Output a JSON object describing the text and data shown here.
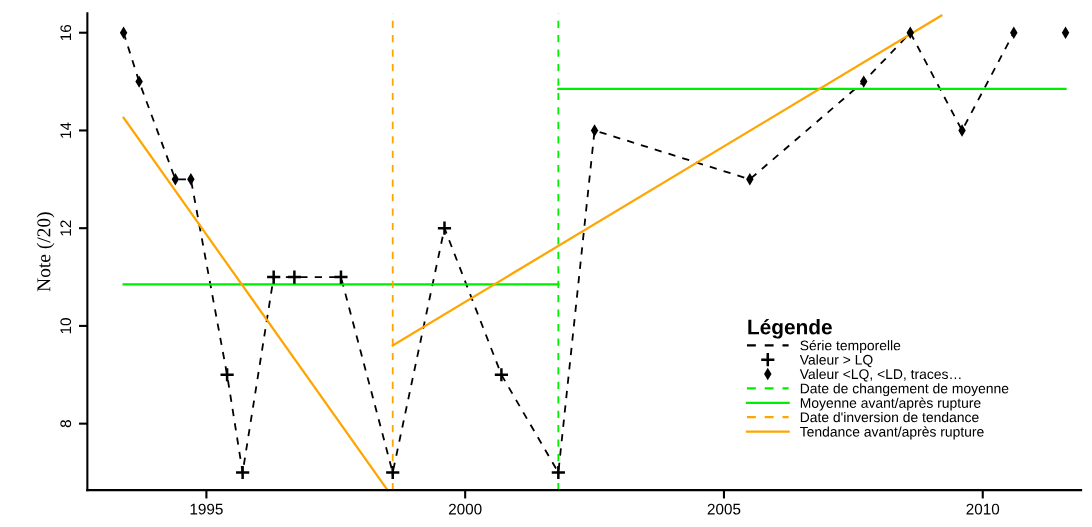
{
  "chart_data": {
    "type": "line",
    "ylabel": "Note (/20)",
    "legend_title": "Légende",
    "legend": "bottom right",
    "grid": false,
    "xlim": [
      1992.7,
      2011.9
    ],
    "xticks": [
      1995,
      2000,
      2005,
      2010
    ],
    "ylim": [
      6.64,
      16.4
    ],
    "yticks": [
      8,
      10,
      12,
      14,
      16
    ],
    "series": [
      {
        "name": "Série temporelle",
        "line_style": "dashed",
        "marker": "none",
        "color": "#000000",
        "x": [
          1993.4,
          1993.7,
          1994.4,
          1994.7,
          1995.4,
          1995.7,
          1996.3,
          1996.7,
          1997.6,
          1998.6,
          1999.6,
          2000.7,
          2001.8,
          2002.5,
          2005.5,
          2007.7,
          2008.6,
          2009.6,
          2010.6
        ],
        "values": [
          16,
          15,
          13,
          13,
          9,
          7,
          11,
          11,
          11,
          7,
          12,
          9,
          7,
          14,
          13,
          15,
          16,
          14,
          16
        ]
      },
      {
        "name": "Valeur > LQ",
        "type": "scatter",
        "marker": "cross",
        "color": "#000000",
        "x": [
          1995.4,
          1995.7,
          1996.3,
          1996.7,
          1997.6,
          1998.6,
          1999.6,
          2000.7,
          2001.8
        ],
        "values": [
          9,
          7,
          11,
          11,
          11,
          7,
          12,
          9,
          7
        ]
      },
      {
        "name": "Valeur <LQ, <LD, traces…",
        "type": "scatter",
        "marker": "diamond",
        "color": "#000000",
        "x": [
          1993.4,
          1993.7,
          1994.4,
          1994.7,
          2002.5,
          2005.5,
          2007.7,
          2008.6,
          2009.6,
          2010.6,
          2011.6
        ],
        "values": [
          16,
          15,
          13,
          13,
          14,
          13,
          15,
          16,
          14,
          16,
          16
        ]
      },
      {
        "name": "Date de changement de moyenne",
        "line_style": "dashed",
        "marker": "none",
        "color": "#00ee00",
        "x": [
          2001.8,
          2001.8
        ],
        "values": [
          6.64,
          16.4
        ]
      },
      {
        "name": "Moyenne avant/après rupture",
        "line_style": "solid",
        "marker": "none",
        "color": "#00ee00",
        "x": [
          1993.4,
          2001.8,
          null,
          2001.8,
          2011.6
        ],
        "values": [
          10.85,
          10.85,
          null,
          14.85,
          14.85
        ]
      },
      {
        "name": "Date d'inversion de tendance",
        "line_style": "dashed",
        "marker": "none",
        "color": "#ffa500",
        "x": [
          1998.6,
          1998.6
        ],
        "values": [
          6.64,
          16.4
        ]
      },
      {
        "name": "Tendance avant/après rupture",
        "line_style": "solid",
        "marker": "none",
        "color": "#ffa500",
        "x": [
          1993.4,
          1998.5,
          null,
          1998.6,
          2009.2
        ],
        "values": [
          14.26,
          6.64,
          null,
          9.6,
          16.35
        ]
      }
    ]
  }
}
